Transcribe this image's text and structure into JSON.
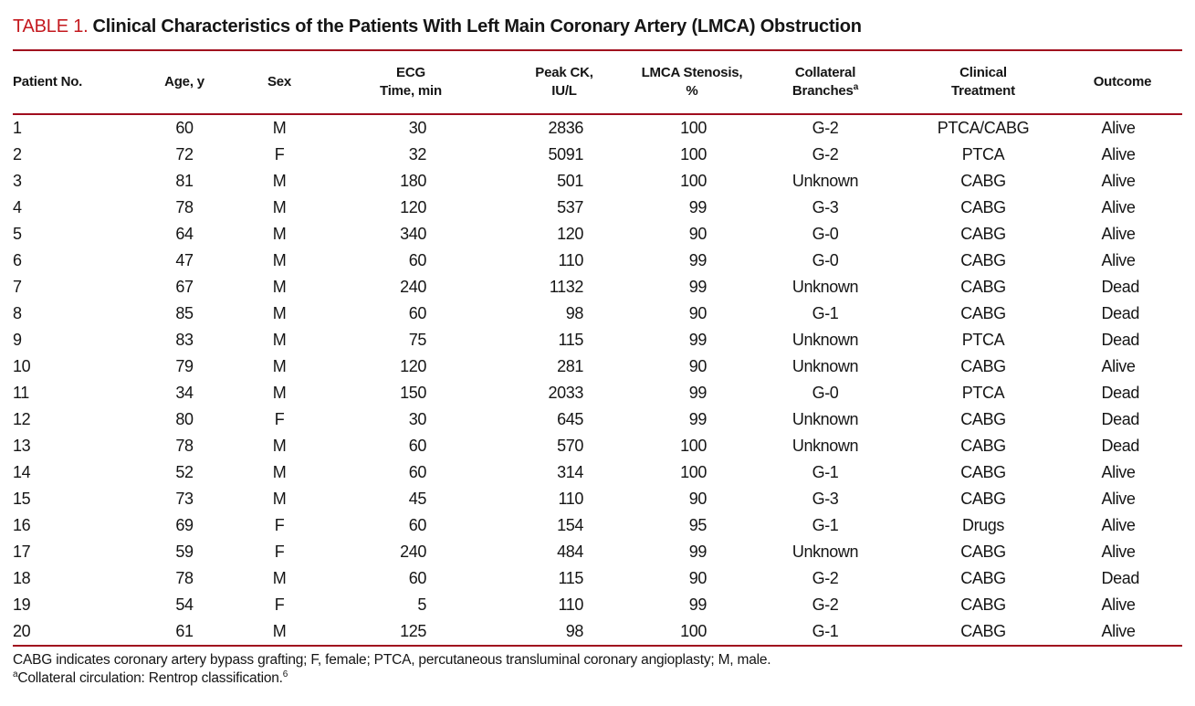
{
  "title": {
    "label": "TABLE 1.",
    "text": "Clinical Characteristics of the Patients With Left Main Coronary Artery (LMCA) Obstruction"
  },
  "colors": {
    "rule": "#a00d1e",
    "table_label_red": "#c41a1f"
  },
  "table": {
    "columns": [
      {
        "id": "patient-no",
        "lines": [
          "Patient No."
        ],
        "align": "left"
      },
      {
        "id": "age",
        "lines": [
          "Age, y"
        ],
        "align": "center"
      },
      {
        "id": "sex",
        "lines": [
          "Sex"
        ],
        "align": "center"
      },
      {
        "id": "ecg-time",
        "lines": [
          "ECG",
          "Time, min"
        ],
        "align": "num",
        "numw": 34
      },
      {
        "id": "peak-ck",
        "lines": [
          "Peak CK,",
          "IU/L"
        ],
        "align": "num",
        "numw": 42
      },
      {
        "id": "lmca-stenosis",
        "lines": [
          "LMCA Stenosis,",
          "%"
        ],
        "align": "num",
        "numw": 32
      },
      {
        "id": "collateral-branches",
        "lines": [
          "Collateral",
          "Branches"
        ],
        "sup": "a",
        "align": "center"
      },
      {
        "id": "clinical-treatment",
        "lines": [
          "Clinical",
          "Treatment"
        ],
        "align": "center"
      },
      {
        "id": "outcome",
        "lines": [
          "Outcome"
        ],
        "align": "outcome",
        "outw": 46
      }
    ],
    "rows": [
      [
        "1",
        "60",
        "M",
        "30",
        "2836",
        "100",
        "G-2",
        "PTCA/CABG",
        "Alive"
      ],
      [
        "2",
        "72",
        "F",
        "32",
        "5091",
        "100",
        "G-2",
        "PTCA",
        "Alive"
      ],
      [
        "3",
        "81",
        "M",
        "180",
        "501",
        "100",
        "Unknown",
        "CABG",
        "Alive"
      ],
      [
        "4",
        "78",
        "M",
        "120",
        "537",
        "99",
        "G-3",
        "CABG",
        "Alive"
      ],
      [
        "5",
        "64",
        "M",
        "340",
        "120",
        "90",
        "G-0",
        "CABG",
        "Alive"
      ],
      [
        "6",
        "47",
        "M",
        "60",
        "110",
        "99",
        "G-0",
        "CABG",
        "Alive"
      ],
      [
        "7",
        "67",
        "M",
        "240",
        "1132",
        "99",
        "Unknown",
        "CABG",
        "Dead"
      ],
      [
        "8",
        "85",
        "M",
        "60",
        "98",
        "90",
        "G-1",
        "CABG",
        "Dead"
      ],
      [
        "9",
        "83",
        "M",
        "75",
        "115",
        "99",
        "Unknown",
        "PTCA",
        "Dead"
      ],
      [
        "10",
        "79",
        "M",
        "120",
        "281",
        "90",
        "Unknown",
        "CABG",
        "Alive"
      ],
      [
        "11",
        "34",
        "M",
        "150",
        "2033",
        "99",
        "G-0",
        "PTCA",
        "Dead"
      ],
      [
        "12",
        "80",
        "F",
        "30",
        "645",
        "99",
        "Unknown",
        "CABG",
        "Dead"
      ],
      [
        "13",
        "78",
        "M",
        "60",
        "570",
        "100",
        "Unknown",
        "CABG",
        "Dead"
      ],
      [
        "14",
        "52",
        "M",
        "60",
        "314",
        "100",
        "G-1",
        "CABG",
        "Alive"
      ],
      [
        "15",
        "73",
        "M",
        "45",
        "110",
        "90",
        "G-3",
        "CABG",
        "Alive"
      ],
      [
        "16",
        "69",
        "F",
        "60",
        "154",
        "95",
        "G-1",
        "Drugs",
        "Alive"
      ],
      [
        "17",
        "59",
        "F",
        "240",
        "484",
        "99",
        "Unknown",
        "CABG",
        "Alive"
      ],
      [
        "18",
        "78",
        "M",
        "60",
        "115",
        "90",
        "G-2",
        "CABG",
        "Dead"
      ],
      [
        "19",
        "54",
        "F",
        "5",
        "110",
        "99",
        "G-2",
        "CABG",
        "Alive"
      ],
      [
        "20",
        "61",
        "M",
        "125",
        "98",
        "100",
        "G-1",
        "CABG",
        "Alive"
      ]
    ]
  },
  "footnotes": {
    "line1": "CABG indicates coronary artery bypass grafting; F, female; PTCA, percutaneous transluminal coronary angioplasty; M, male.",
    "line2_marker": "a",
    "line2_text": "Collateral circulation: Rentrop classification.",
    "line2_ref": "6"
  }
}
